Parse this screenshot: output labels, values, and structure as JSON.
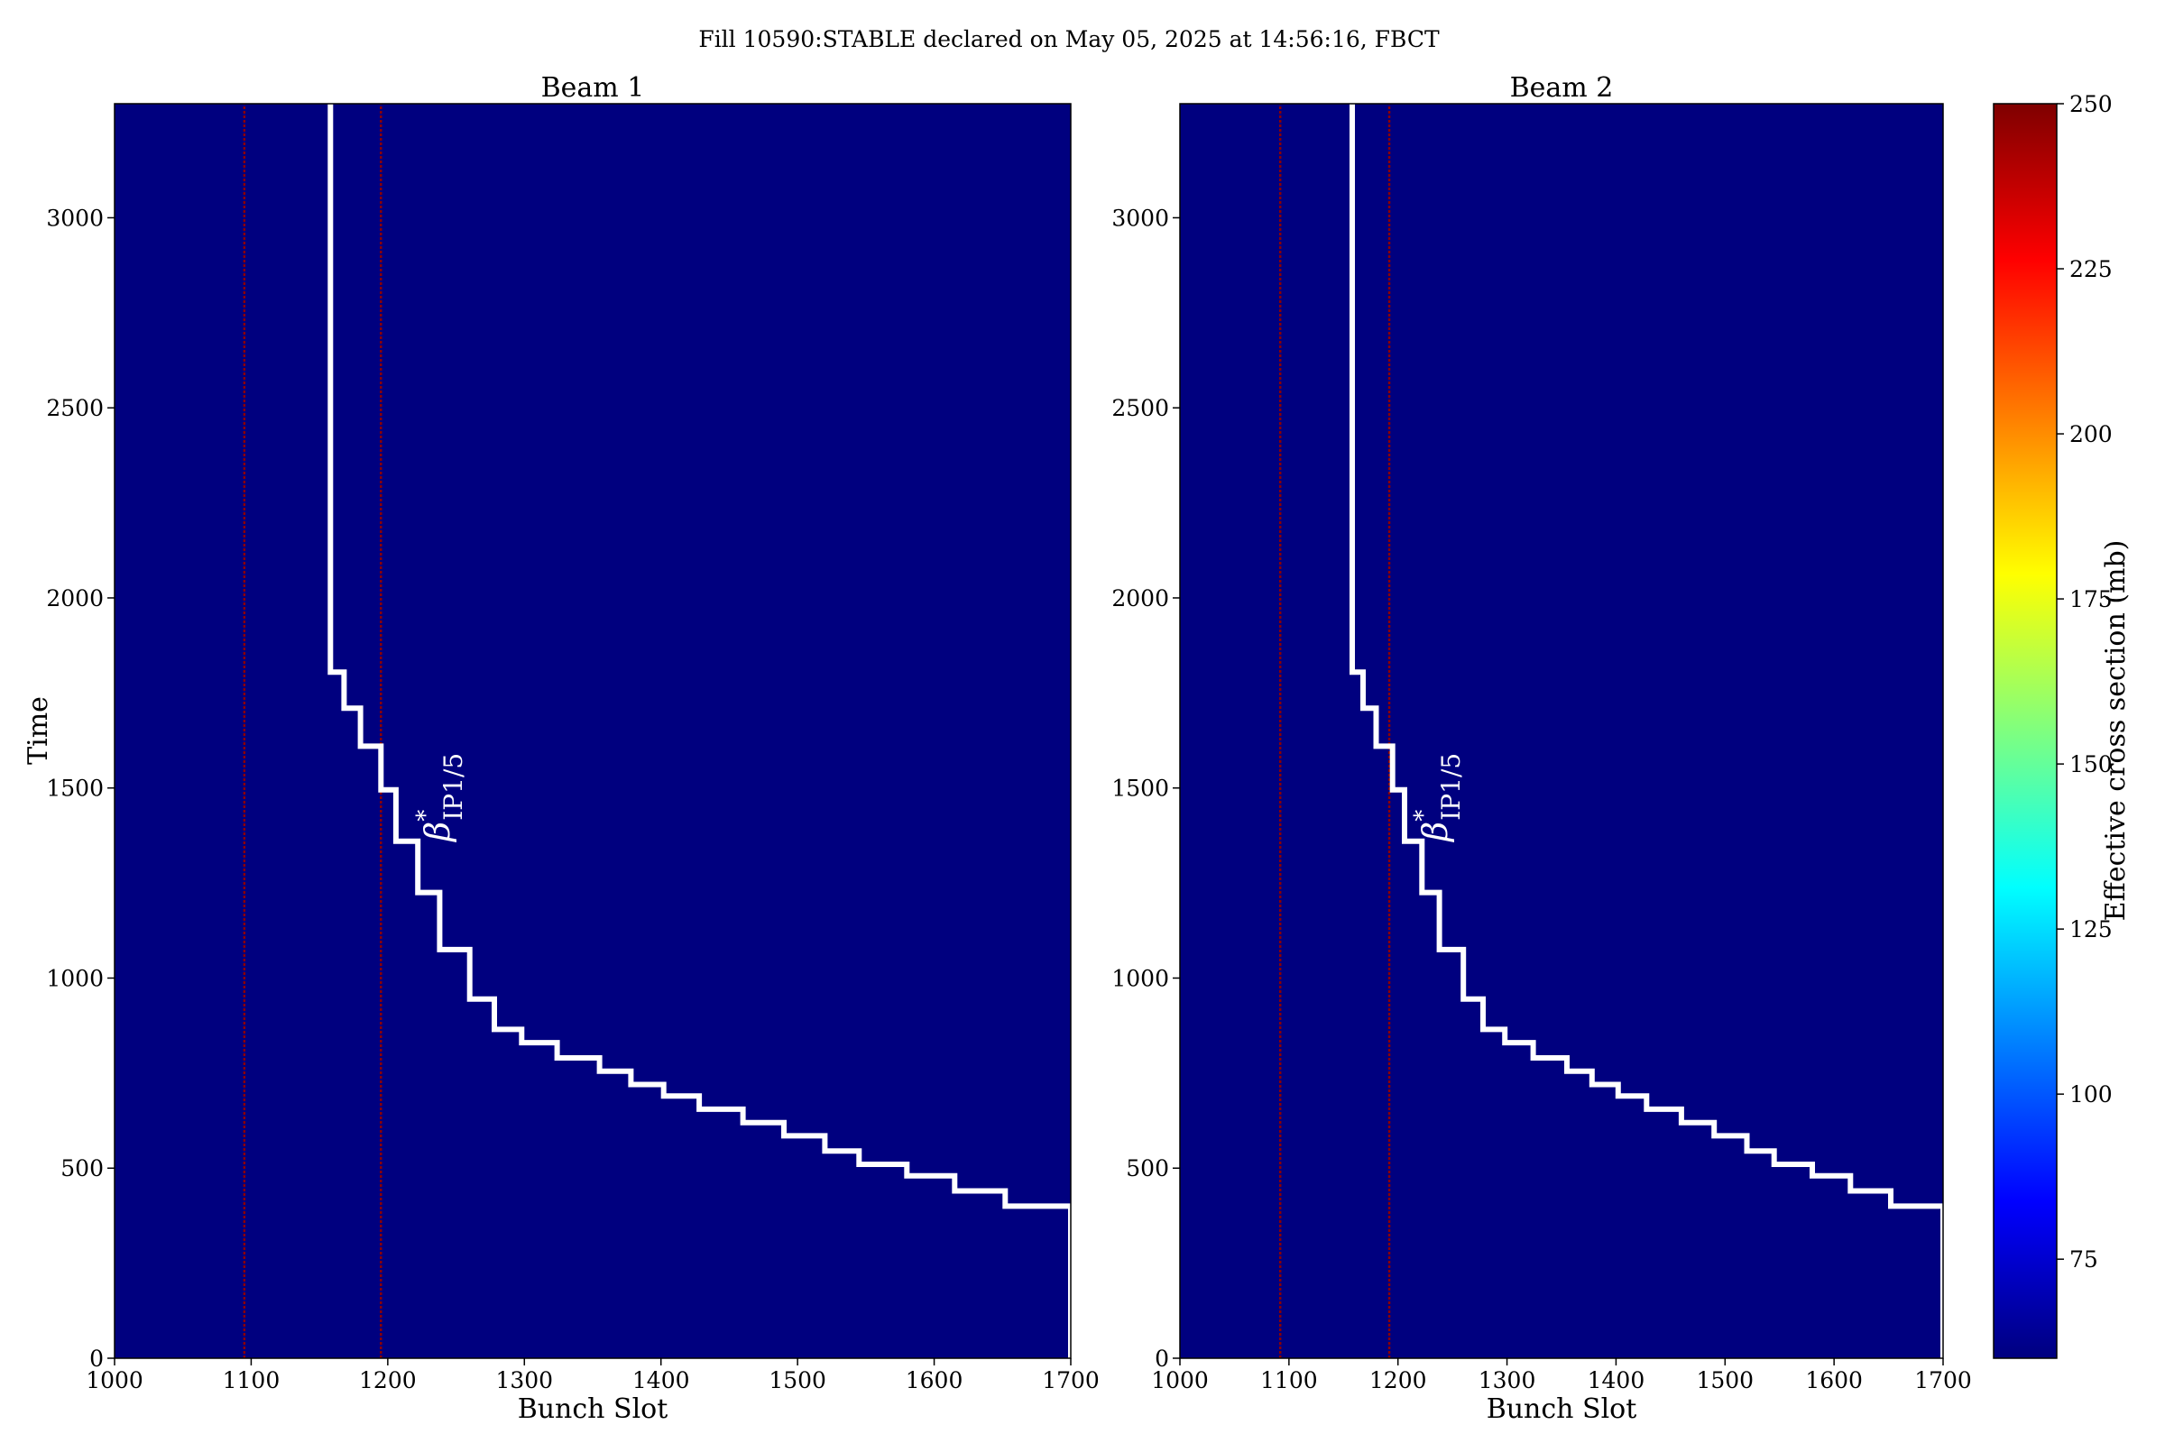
{
  "title": "Fill 10590:STABLE declared on May 05, 2025 at 14:56:16, FBCT",
  "colors": {
    "background_cmap_low": "#00007f",
    "hot_line": "#8b0000",
    "step_line": "#ffffff",
    "colormap": [
      "#00007f",
      "#0000ff",
      "#007fff",
      "#00ffff",
      "#7fff7f",
      "#ffff00",
      "#ff7f00",
      "#ff0000",
      "#7f0000"
    ]
  },
  "chart_data": [
    {
      "type": "heatmap",
      "title": "Beam 1",
      "xlabel": "Bunch Slot",
      "ylabel": "Time",
      "xlim": [
        1000,
        1700
      ],
      "ylim": [
        0,
        3300
      ],
      "xticks": [
        1000,
        1100,
        1200,
        1300,
        1400,
        1500,
        1600,
        1700
      ],
      "yticks": [
        0,
        500,
        1000,
        1500,
        2000,
        2500,
        3000
      ],
      "background_value": 60,
      "hot_columns": [
        {
          "x": 1095,
          "y_range": [
            0,
            3300
          ],
          "value": 250
        },
        {
          "x": 1195,
          "y_range": [
            0,
            3300
          ],
          "value": 250
        }
      ],
      "annotation": {
        "text_base": "β",
        "superscript": "*",
        "subscript": "IP1/5",
        "x": 1245,
        "y": 1360
      },
      "step_line": {
        "x": [
          1158,
          1158,
          1168,
          1168,
          1180,
          1180,
          1195,
          1195,
          1206,
          1206,
          1222,
          1222,
          1238,
          1238,
          1260,
          1260,
          1278,
          1278,
          1298,
          1298,
          1324,
          1324,
          1355,
          1355,
          1378,
          1378,
          1402,
          1402,
          1428,
          1428,
          1460,
          1460,
          1490,
          1490,
          1520,
          1520,
          1545,
          1545,
          1580,
          1580,
          1615,
          1615,
          1652,
          1652,
          1700,
          1700
        ],
        "y": [
          3300,
          1805,
          1805,
          1710,
          1710,
          1610,
          1610,
          1495,
          1495,
          1360,
          1360,
          1225,
          1225,
          1075,
          1075,
          945,
          945,
          865,
          865,
          830,
          830,
          790,
          790,
          755,
          755,
          720,
          720,
          690,
          690,
          655,
          655,
          620,
          620,
          585,
          585,
          545,
          545,
          510,
          510,
          480,
          480,
          440,
          440,
          400,
          400,
          0
        ]
      }
    },
    {
      "type": "heatmap",
      "title": "Beam 2",
      "xlabel": "Bunch Slot",
      "ylabel": "",
      "xlim": [
        1000,
        1700
      ],
      "ylim": [
        0,
        3300
      ],
      "xticks": [
        1000,
        1100,
        1200,
        1300,
        1400,
        1500,
        1600,
        1700
      ],
      "yticks": [
        0,
        500,
        1000,
        1500,
        2000,
        2500,
        3000
      ],
      "background_value": 60,
      "hot_columns": [
        {
          "x": 1092,
          "y_range": [
            0,
            3300
          ],
          "value": 250
        },
        {
          "x": 1192,
          "y_range": [
            0,
            3300
          ],
          "value": 250
        }
      ],
      "annotation": {
        "text_base": "β",
        "superscript": "*",
        "subscript": "IP1/5",
        "x": 1245,
        "y": 1360
      },
      "step_line": {
        "x": [
          1158,
          1158,
          1168,
          1168,
          1180,
          1180,
          1195,
          1195,
          1206,
          1206,
          1222,
          1222,
          1238,
          1238,
          1260,
          1260,
          1278,
          1278,
          1298,
          1298,
          1324,
          1324,
          1355,
          1355,
          1378,
          1378,
          1402,
          1402,
          1428,
          1428,
          1460,
          1460,
          1490,
          1490,
          1520,
          1520,
          1545,
          1545,
          1580,
          1580,
          1615,
          1615,
          1652,
          1652,
          1700,
          1700
        ],
        "y": [
          3300,
          1805,
          1805,
          1710,
          1710,
          1610,
          1610,
          1495,
          1495,
          1360,
          1360,
          1225,
          1225,
          1075,
          1075,
          945,
          945,
          865,
          865,
          830,
          830,
          790,
          790,
          755,
          755,
          720,
          720,
          690,
          690,
          655,
          655,
          620,
          620,
          585,
          585,
          545,
          545,
          510,
          510,
          480,
          480,
          440,
          440,
          400,
          400,
          0
        ]
      }
    }
  ],
  "colorbar": {
    "label": "Effective cross section (mb)",
    "range": [
      60,
      250
    ],
    "ticks": [
      75,
      100,
      125,
      150,
      175,
      200,
      225,
      250
    ]
  }
}
